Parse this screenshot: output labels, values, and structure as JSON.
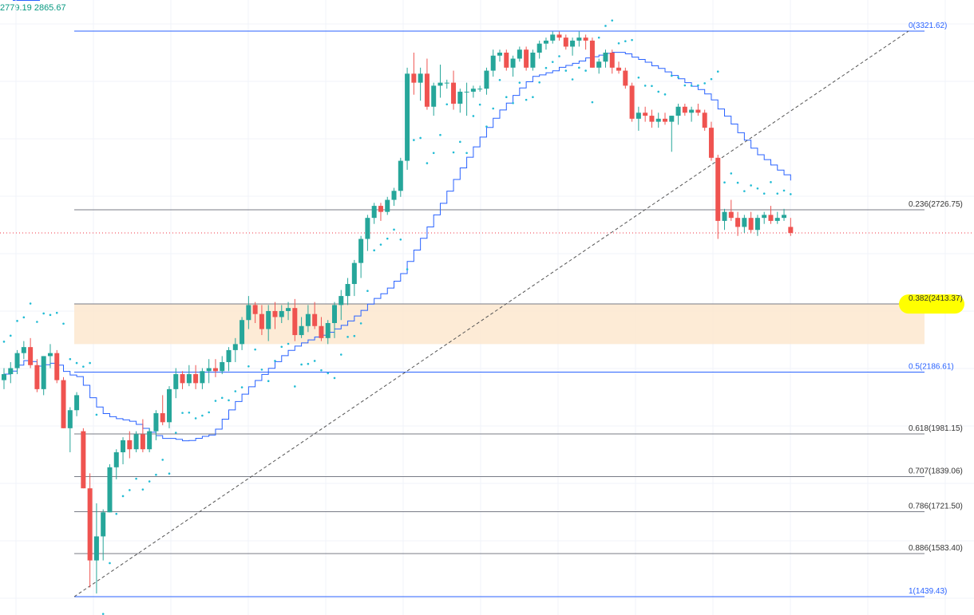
{
  "header": {
    "ohlc_left": "2779.19",
    "ohlc_right": "2865.67"
  },
  "colors": {
    "up": "#26a69a",
    "down": "#ef5350",
    "grid": "#f0f3fa",
    "fib_line_default": "#787b86",
    "fib_line_blue": "#2962ff",
    "zone_fill": "#fde6cc",
    "highlight": "#ffff00",
    "ma_line": "#2962ff",
    "sar_dots": "#22bcd4",
    "price_line": "#f23645",
    "trend_line": "#555555"
  },
  "chart_data": {
    "type": "candlestick",
    "title": "",
    "ylim": [
      1420,
      3345
    ],
    "current_price": 2650,
    "fib_levels": [
      {
        "ratio": "0",
        "price": 3321.62,
        "label": "0(3321.62)",
        "color": "blue"
      },
      {
        "ratio": "0.236",
        "price": 2726.75,
        "label": "0.236(2726.75)",
        "color": "gray"
      },
      {
        "ratio": "0.382",
        "price": 2413.37,
        "label": "0.382(2413.37)",
        "color": "gray",
        "highlighted": true
      },
      {
        "ratio": "0.5",
        "price": 2186.61,
        "label": "0.5(2186.61)",
        "color": "blue"
      },
      {
        "ratio": "0.618",
        "price": 1981.15,
        "label": "0.618(1981.15)",
        "color": "gray"
      },
      {
        "ratio": "0.707",
        "price": 1839.06,
        "label": "0.707(1839.06)",
        "color": "gray"
      },
      {
        "ratio": "0.786",
        "price": 1721.5,
        "label": "0.786(1721.50)",
        "color": "gray"
      },
      {
        "ratio": "0.886",
        "price": 1583.4,
        "label": "0.886(1583.40)",
        "color": "gray"
      },
      {
        "ratio": "1",
        "price": 1439.43,
        "label": "1(1439.43)",
        "color": "blue"
      }
    ],
    "zone": {
      "top": 2413.37,
      "bottom": 2280
    },
    "trend_line": {
      "from": 1439.43,
      "to": 3321.62
    },
    "candles": [
      [
        2160,
        2200,
        2130,
        2180
      ],
      [
        2180,
        2220,
        2150,
        2200
      ],
      [
        2200,
        2260,
        2180,
        2250
      ],
      [
        2250,
        2290,
        2230,
        2270
      ],
      [
        2270,
        2300,
        2200,
        2210
      ],
      [
        2210,
        2230,
        2120,
        2130
      ],
      [
        2130,
        2240,
        2110,
        2240
      ],
      [
        2240,
        2280,
        2200,
        2250
      ],
      [
        2250,
        2260,
        2150,
        2160
      ],
      [
        2160,
        2170,
        2000,
        2000
      ],
      [
        2000,
        2070,
        1920,
        2060
      ],
      [
        2060,
        2120,
        2040,
        2110
      ],
      [
        1990,
        2000,
        1800,
        1800
      ],
      [
        1800,
        1850,
        1470,
        1560
      ],
      [
        1560,
        1750,
        1450,
        1640
      ],
      [
        1640,
        1730,
        1560,
        1720
      ],
      [
        1720,
        1880,
        1720,
        1870
      ],
      [
        1870,
        1930,
        1830,
        1920
      ],
      [
        1920,
        1970,
        1880,
        1960
      ],
      [
        1960,
        1990,
        1900,
        1930
      ],
      [
        1930,
        1990,
        1920,
        1980
      ],
      [
        1980,
        2030,
        1920,
        1930
      ],
      [
        1930,
        2000,
        1920,
        1990
      ],
      [
        1990,
        2060,
        1960,
        2050
      ],
      [
        2050,
        2110,
        2010,
        2020
      ],
      [
        2020,
        2140,
        2000,
        2130
      ],
      [
        2130,
        2200,
        2100,
        2180
      ],
      [
        2180,
        2190,
        2130,
        2150
      ],
      [
        2150,
        2210,
        2140,
        2180
      ],
      [
        2180,
        2210,
        2130,
        2150
      ],
      [
        2150,
        2200,
        2130,
        2190
      ],
      [
        2190,
        2230,
        2150,
        2200
      ],
      [
        2200,
        2230,
        2170,
        2190
      ],
      [
        2190,
        2240,
        2180,
        2220
      ],
      [
        2220,
        2270,
        2190,
        2260
      ],
      [
        2260,
        2300,
        2220,
        2280
      ],
      [
        2280,
        2370,
        2260,
        2360
      ],
      [
        2360,
        2440,
        2330,
        2410
      ],
      [
        2410,
        2420,
        2350,
        2380
      ],
      [
        2380,
        2410,
        2310,
        2330
      ],
      [
        2330,
        2410,
        2290,
        2390
      ],
      [
        2390,
        2420,
        2330,
        2370
      ],
      [
        2370,
        2410,
        2350,
        2390
      ],
      [
        2390,
        2420,
        2360,
        2400
      ],
      [
        2400,
        2430,
        2290,
        2310
      ],
      [
        2310,
        2370,
        2300,
        2340
      ],
      [
        2340,
        2410,
        2320,
        2380
      ],
      [
        2380,
        2420,
        2330,
        2340
      ],
      [
        2340,
        2370,
        2290,
        2300
      ],
      [
        2300,
        2360,
        2280,
        2350
      ],
      [
        2350,
        2420,
        2300,
        2410
      ],
      [
        2410,
        2460,
        2360,
        2440
      ],
      [
        2440,
        2500,
        2410,
        2480
      ],
      [
        2480,
        2560,
        2440,
        2550
      ],
      [
        2550,
        2640,
        2500,
        2630
      ],
      [
        2630,
        2710,
        2590,
        2700
      ],
      [
        2700,
        2750,
        2680,
        2740
      ],
      [
        2740,
        2750,
        2690,
        2720
      ],
      [
        2720,
        2770,
        2710,
        2760
      ],
      [
        2760,
        2800,
        2740,
        2790
      ],
      [
        2790,
        2900,
        2770,
        2890
      ],
      [
        2890,
        3200,
        2860,
        3180
      ],
      [
        3180,
        3250,
        3110,
        3150
      ],
      [
        3150,
        3200,
        3090,
        3180
      ],
      [
        3180,
        3230,
        3060,
        3070
      ],
      [
        3070,
        3150,
        3040,
        3140
      ],
      [
        3140,
        3210,
        3100,
        3150
      ],
      [
        3150,
        3160,
        3130,
        3150
      ],
      [
        3150,
        3190,
        3060,
        3080
      ],
      [
        3080,
        3130,
        3050,
        3120
      ],
      [
        3120,
        3150,
        3040,
        3120
      ],
      [
        3120,
        3140,
        3100,
        3130
      ],
      [
        3130,
        3140,
        3120,
        3130
      ],
      [
        3130,
        3200,
        3110,
        3190
      ],
      [
        3190,
        3260,
        3170,
        3240
      ],
      [
        3240,
        3260,
        3220,
        3250
      ],
      [
        3250,
        3260,
        3190,
        3200
      ],
      [
        3200,
        3240,
        3170,
        3230
      ],
      [
        3230,
        3270,
        3220,
        3260
      ],
      [
        3260,
        3270,
        3190,
        3200
      ],
      [
        3200,
        3260,
        3190,
        3250
      ],
      [
        3250,
        3290,
        3230,
        3280
      ],
      [
        3280,
        3300,
        3260,
        3290
      ],
      [
        3290,
        3320,
        3280,
        3310
      ],
      [
        3310,
        3320,
        3290,
        3300
      ],
      [
        3300,
        3310,
        3260,
        3270
      ],
      [
        3270,
        3300,
        3240,
        3290
      ],
      [
        3290,
        3320,
        3270,
        3300
      ],
      [
        3300,
        3310,
        3260,
        3290
      ],
      [
        3290,
        3300,
        3200,
        3200
      ],
      [
        3200,
        3230,
        3180,
        3220
      ],
      [
        3220,
        3260,
        3200,
        3250
      ],
      [
        3250,
        3260,
        3180,
        3200
      ],
      [
        3200,
        3220,
        3180,
        3190
      ],
      [
        3190,
        3200,
        3130,
        3140
      ],
      [
        3140,
        3150,
        3020,
        3030
      ],
      [
        3030,
        3070,
        2990,
        3050
      ],
      [
        3050,
        3070,
        3020,
        3040
      ],
      [
        3040,
        3060,
        3000,
        3020
      ],
      [
        3020,
        3050,
        3000,
        3030
      ],
      [
        3030,
        3050,
        3010,
        3020
      ],
      [
        3020,
        3040,
        2920,
        3040
      ],
      [
        3040,
        3080,
        3010,
        3070
      ],
      [
        3070,
        3080,
        3040,
        3050
      ],
      [
        3050,
        3070,
        3020,
        3060
      ],
      [
        3060,
        3080,
        3040,
        3050
      ],
      [
        3050,
        3060,
        2990,
        3000
      ],
      [
        3000,
        3020,
        2890,
        2900
      ],
      [
        2900,
        2910,
        2630,
        2690
      ],
      [
        2690,
        2730,
        2660,
        2720
      ],
      [
        2720,
        2760,
        2690,
        2700
      ],
      [
        2700,
        2720,
        2640,
        2670
      ],
      [
        2670,
        2710,
        2650,
        2700
      ],
      [
        2700,
        2720,
        2650,
        2660
      ],
      [
        2660,
        2710,
        2640,
        2700
      ],
      [
        2700,
        2720,
        2680,
        2710
      ],
      [
        2710,
        2740,
        2680,
        2690
      ],
      [
        2690,
        2720,
        2680,
        2700
      ],
      [
        2700,
        2730,
        2690,
        2710
      ],
      [
        2670,
        2700,
        2640,
        2650
      ]
    ]
  }
}
